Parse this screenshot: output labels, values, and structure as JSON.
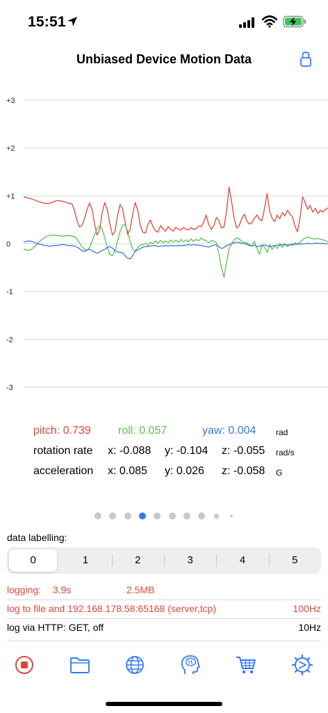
{
  "status": {
    "time": "15:51"
  },
  "nav": {
    "title": "Unbiased Device Motion Data"
  },
  "colors": {
    "pitch": "#e0463a",
    "roll": "#5cbf4a",
    "yaw": "#3a78d6",
    "accent": "#3478f6",
    "logging": "#e0463a"
  },
  "chart_data": {
    "type": "line",
    "title": "",
    "xlabel": "",
    "ylabel": "",
    "ylim": [
      -3,
      3
    ],
    "yticks": [
      "+3",
      "+2",
      "+1",
      "0",
      "-1",
      "-2",
      "-3"
    ],
    "grid": true,
    "x": [
      0,
      1,
      2,
      3,
      4,
      5,
      6,
      7,
      8,
      9,
      10,
      11,
      12,
      13,
      14,
      15,
      16,
      17,
      18,
      19,
      20,
      21,
      22,
      23,
      24,
      25,
      26,
      27,
      28,
      29,
      30,
      31,
      32,
      33,
      34,
      35,
      36,
      37,
      38,
      39,
      40,
      41,
      42,
      43,
      44,
      45,
      46,
      47,
      48,
      49,
      50,
      51,
      52,
      53,
      54,
      55,
      56,
      57,
      58,
      59,
      60,
      61,
      62,
      63,
      64,
      65,
      66,
      67,
      68,
      69,
      70,
      71,
      72,
      73,
      74,
      75,
      76,
      77,
      78,
      79,
      80,
      81,
      82,
      83,
      84,
      85,
      86,
      87,
      88,
      89,
      90,
      91,
      92,
      93,
      94,
      95,
      96,
      97,
      98,
      99,
      100,
      101,
      102,
      103,
      104,
      105,
      106,
      107,
      108,
      109,
      110,
      111,
      112,
      113,
      114,
      115,
      116,
      117,
      118,
      119,
      120
    ],
    "series": [
      {
        "name": "pitch",
        "values": [
          0.98,
          0.97,
          0.95,
          0.94,
          0.92,
          0.9,
          0.88,
          0.86,
          0.85,
          0.84,
          0.84,
          0.86,
          0.88,
          0.9,
          0.9,
          0.89,
          0.88,
          0.86,
          0.84,
          0.84,
          0.7,
          0.5,
          0.35,
          0.38,
          0.52,
          0.72,
          0.85,
          0.72,
          0.4,
          0.18,
          0.3,
          0.66,
          0.86,
          0.72,
          0.42,
          0.18,
          0.25,
          0.58,
          0.82,
          0.74,
          0.45,
          0.19,
          0.3,
          0.62,
          0.86,
          0.7,
          0.38,
          0.24,
          0.22,
          0.4,
          0.5,
          0.35,
          0.27,
          0.24,
          0.38,
          0.31,
          0.26,
          0.36,
          0.3,
          0.26,
          0.34,
          0.31,
          0.28,
          0.34,
          0.3,
          0.29,
          0.34,
          0.3,
          0.31,
          0.37,
          0.36,
          0.45,
          0.6,
          0.4,
          0.3,
          0.38,
          0.55,
          0.48,
          0.33,
          0.35,
          0.68,
          1.18,
          0.88,
          0.54,
          0.33,
          0.38,
          0.52,
          0.62,
          0.48,
          0.41,
          0.44,
          0.53,
          0.6,
          0.51,
          0.48,
          0.75,
          1.05,
          0.68,
          0.53,
          0.46,
          0.6,
          0.52,
          0.65,
          0.58,
          0.7,
          0.62,
          0.56,
          0.36,
          0.25,
          0.55,
          0.98,
          0.86,
          0.72,
          0.8,
          0.66,
          0.74,
          0.63,
          0.7,
          0.66,
          0.72,
          0.75
        ]
      },
      {
        "name": "roll",
        "values": [
          -0.12,
          -0.13,
          -0.14,
          -0.12,
          -0.08,
          -0.03,
          0.03,
          0.08,
          0.12,
          0.15,
          0.17,
          0.18,
          0.18,
          0.17,
          0.17,
          0.16,
          0.16,
          0.17,
          0.17,
          0.16,
          0.15,
          0.1,
          0.02,
          -0.06,
          -0.12,
          -0.14,
          -0.08,
          0.05,
          0.2,
          0.32,
          0.38,
          0.3,
          0.12,
          -0.08,
          -0.22,
          -0.25,
          -0.15,
          0.05,
          0.25,
          0.38,
          0.4,
          0.26,
          0.05,
          -0.12,
          -0.15,
          -0.08,
          -0.03,
          -0.02,
          0.01,
          -0.04,
          0.03,
          0.0,
          0.06,
          0.01,
          0.07,
          0.02,
          0.06,
          0.02,
          0.08,
          0.03,
          0.07,
          0.03,
          0.09,
          0.04,
          0.08,
          0.04,
          0.1,
          0.05,
          0.09,
          0.06,
          0.12,
          0.08,
          0.06,
          0.02,
          0.07,
          0.05,
          0.02,
          -0.22,
          -0.5,
          -0.7,
          -0.4,
          -0.1,
          0.0,
          0.08,
          0.12,
          0.1,
          0.05,
          0.02,
          0.02,
          -0.02,
          -0.05,
          0.05,
          -0.1,
          -0.22,
          -0.02,
          -0.08,
          -0.18,
          -0.02,
          -0.12,
          -0.04,
          -0.1,
          0.0,
          -0.08,
          0.0,
          -0.06,
          -0.02,
          -0.04,
          0.02,
          -0.02,
          0.04,
          0.08,
          0.12,
          0.14,
          0.12,
          0.1,
          0.1,
          0.11,
          0.09,
          0.08,
          0.06,
          0.04
        ]
      },
      {
        "name": "yaw",
        "values": [
          0.03,
          0.05,
          0.06,
          0.05,
          0.03,
          0.01,
          -0.01,
          -0.02,
          -0.03,
          -0.04,
          -0.05,
          -0.05,
          -0.04,
          -0.04,
          -0.03,
          -0.02,
          -0.02,
          -0.03,
          -0.04,
          -0.04,
          -0.05,
          -0.07,
          -0.1,
          -0.15,
          -0.16,
          -0.13,
          -0.12,
          -0.14,
          -0.18,
          -0.2,
          -0.17,
          -0.14,
          -0.12,
          -0.08,
          -0.06,
          -0.09,
          -0.15,
          -0.17,
          -0.18,
          -0.19,
          -0.25,
          -0.3,
          -0.32,
          -0.25,
          -0.16,
          -0.13,
          -0.1,
          -0.07,
          -0.06,
          -0.06,
          -0.05,
          -0.04,
          -0.04,
          -0.06,
          -0.05,
          -0.05,
          -0.04,
          -0.05,
          -0.04,
          -0.04,
          -0.05,
          -0.04,
          -0.04,
          -0.04,
          -0.03,
          -0.02,
          -0.03,
          -0.02,
          -0.03,
          -0.03,
          -0.04,
          -0.05,
          -0.06,
          -0.07,
          -0.05,
          -0.03,
          -0.02,
          -0.06,
          -0.1,
          -0.08,
          -0.04,
          -0.02,
          0.0,
          0.02,
          0.03,
          0.02,
          0.01,
          0.0,
          -0.01,
          -0.04,
          -0.05,
          -0.03,
          -0.06,
          -0.05,
          -0.04,
          -0.03,
          -0.04,
          -0.06,
          -0.05,
          -0.04,
          -0.03,
          -0.03,
          -0.02,
          -0.02,
          -0.03,
          -0.02,
          -0.01,
          -0.01,
          0.0,
          -0.01,
          0.0,
          0.0,
          0.01,
          0.0,
          0.0,
          0.01,
          0.01,
          0.0,
          0.01,
          0.0,
          0.0
        ]
      }
    ]
  },
  "readout": {
    "pitch": "pitch: 0.739",
    "roll": "roll: 0.057",
    "yaw": "yaw: 0.004",
    "rad_unit": "rad",
    "rotation_label": "rotation rate",
    "rotation_x": "x: -0.088",
    "rotation_y": "y: -0.104",
    "rotation_z": "z: -0.055",
    "rotation_unit": "rad/s",
    "acceleration_label": "acceleration",
    "acceleration_x": "x: 0.085",
    "acceleration_y": "y: 0.026",
    "acceleration_z": "z: -0.058",
    "acceleration_unit": "G"
  },
  "page_dots": {
    "count": 10,
    "current_index": 3
  },
  "labelling": {
    "title": "data labelling:",
    "segments": [
      "0",
      "1",
      "2",
      "3",
      "4",
      "5"
    ],
    "selected_index": 0
  },
  "logging": {
    "label": "logging:",
    "duration": "3.9s",
    "size": "2.5MB",
    "destination": "log to file and 192.168.178.58:65168 (server,tcp)",
    "rate": "100Hz",
    "http": "log via HTTP: GET, off",
    "http_rate": "10Hz"
  },
  "tabs": [
    {
      "icon": "record-stop-icon"
    },
    {
      "icon": "folder-icon"
    },
    {
      "icon": "globe-icon"
    },
    {
      "icon": "brain-head-icon"
    },
    {
      "icon": "cart-icon"
    },
    {
      "icon": "settings-dial-icon"
    }
  ]
}
